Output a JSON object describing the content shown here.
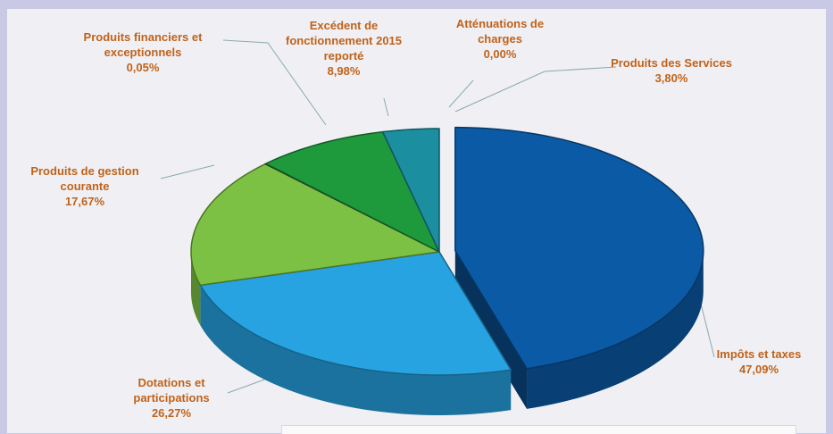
{
  "chart_data": {
    "type": "pie3d",
    "categories": [
      "Impôts et taxes",
      "Dotations et participations",
      "Produits de gestion courante",
      "Produits financiers et exceptionnels",
      "Excédent de fonctionnement 2015 reporté",
      "Atténuations de charges",
      "Produits des Services"
    ],
    "values": [
      47.09,
      26.27,
      17.67,
      0.05,
      8.98,
      0,
      3.8
    ],
    "value_labels": [
      "47,09%",
      "26,27%",
      "17,67%",
      "0,05%",
      "8,98%",
      "0,00%",
      "3,80%"
    ],
    "colors": [
      "#0b5aa6",
      "#27a3e2",
      "#7cc143",
      "#3a3a3a",
      "#1e9a3c",
      "#5fae3a",
      "#1b8fa0"
    ]
  }
}
